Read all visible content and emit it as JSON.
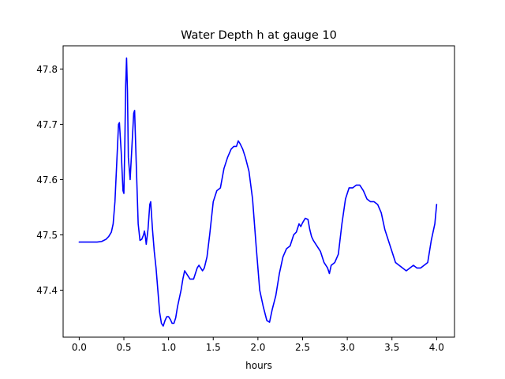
{
  "chart_data": {
    "type": "line",
    "title": "Water Depth h at gauge 10",
    "xlabel": "hours",
    "ylabel": "",
    "xlim": [
      -0.18,
      4.2
    ],
    "ylim": [
      47.315,
      47.842
    ],
    "xticks": [
      0.0,
      0.5,
      1.0,
      1.5,
      2.0,
      2.5,
      3.0,
      3.5,
      4.0
    ],
    "xtick_labels": [
      "0.0",
      "0.5",
      "1.0",
      "1.5",
      "2.0",
      "2.5",
      "3.0",
      "3.5",
      "4.0"
    ],
    "yticks": [
      47.4,
      47.5,
      47.6,
      47.7,
      47.8
    ],
    "ytick_labels": [
      "47.4",
      "47.5",
      "47.6",
      "47.7",
      "47.8"
    ],
    "grid": false,
    "series": [
      {
        "color": "#0000ff",
        "x": [
          0.0,
          0.1,
          0.2,
          0.25,
          0.3,
          0.33,
          0.36,
          0.38,
          0.4,
          0.42,
          0.44,
          0.45,
          0.47,
          0.49,
          0.5,
          0.51,
          0.52,
          0.53,
          0.54,
          0.55,
          0.57,
          0.59,
          0.61,
          0.62,
          0.64,
          0.66,
          0.68,
          0.7,
          0.72,
          0.73,
          0.74,
          0.75,
          0.77,
          0.79,
          0.8,
          0.82,
          0.84,
          0.86,
          0.88,
          0.9,
          0.92,
          0.94,
          0.96,
          0.98,
          1.0,
          1.02,
          1.04,
          1.06,
          1.08,
          1.1,
          1.12,
          1.14,
          1.16,
          1.18,
          1.2,
          1.22,
          1.24,
          1.26,
          1.28,
          1.3,
          1.32,
          1.34,
          1.36,
          1.38,
          1.4,
          1.43,
          1.46,
          1.5,
          1.54,
          1.58,
          1.62,
          1.66,
          1.7,
          1.73,
          1.76,
          1.78,
          1.8,
          1.83,
          1.86,
          1.9,
          1.94,
          1.98,
          2.02,
          2.06,
          2.1,
          2.13,
          2.16,
          2.2,
          2.24,
          2.28,
          2.32,
          2.36,
          2.4,
          2.43,
          2.46,
          2.48,
          2.5,
          2.53,
          2.56,
          2.58,
          2.6,
          2.62,
          2.64,
          2.66,
          2.7,
          2.74,
          2.78,
          2.8,
          2.82,
          2.86,
          2.9,
          2.94,
          2.98,
          3.02,
          3.06,
          3.1,
          3.14,
          3.18,
          3.22,
          3.26,
          3.3,
          3.34,
          3.38,
          3.42,
          3.46,
          3.5,
          3.54,
          3.58,
          3.62,
          3.66,
          3.7,
          3.74,
          3.78,
          3.82,
          3.86,
          3.9,
          3.94,
          3.98,
          4.0
        ],
        "y": [
          47.487,
          47.487,
          47.487,
          47.488,
          47.492,
          47.497,
          47.505,
          47.52,
          47.56,
          47.63,
          47.7,
          47.703,
          47.65,
          47.58,
          47.575,
          47.66,
          47.77,
          47.82,
          47.76,
          47.64,
          47.6,
          47.66,
          47.72,
          47.725,
          47.62,
          47.52,
          47.49,
          47.492,
          47.5,
          47.507,
          47.498,
          47.483,
          47.51,
          47.555,
          47.56,
          47.51,
          47.47,
          47.44,
          47.4,
          47.36,
          47.34,
          47.335,
          47.345,
          47.352,
          47.352,
          47.347,
          47.34,
          47.34,
          47.35,
          47.37,
          47.385,
          47.4,
          47.42,
          47.435,
          47.43,
          47.425,
          47.42,
          47.42,
          47.42,
          47.43,
          47.44,
          47.445,
          47.44,
          47.435,
          47.44,
          47.46,
          47.5,
          47.56,
          47.58,
          47.585,
          47.62,
          47.64,
          47.655,
          47.66,
          47.66,
          47.67,
          47.665,
          47.655,
          47.64,
          47.615,
          47.565,
          47.48,
          47.4,
          47.37,
          47.345,
          47.342,
          47.365,
          47.39,
          47.43,
          47.46,
          47.475,
          47.48,
          47.5,
          47.505,
          47.52,
          47.515,
          47.522,
          47.53,
          47.528,
          47.51,
          47.497,
          47.49,
          47.485,
          47.48,
          47.47,
          47.45,
          47.44,
          47.43,
          47.445,
          47.45,
          47.465,
          47.52,
          47.565,
          47.585,
          47.585,
          47.59,
          47.59,
          47.58,
          47.565,
          47.56,
          47.56,
          47.555,
          47.54,
          47.51,
          47.49,
          47.47,
          47.45,
          47.445,
          47.44,
          47.435,
          47.44,
          47.445,
          47.44,
          47.44,
          47.445,
          47.45,
          47.49,
          47.52,
          47.555
        ]
      }
    ]
  }
}
